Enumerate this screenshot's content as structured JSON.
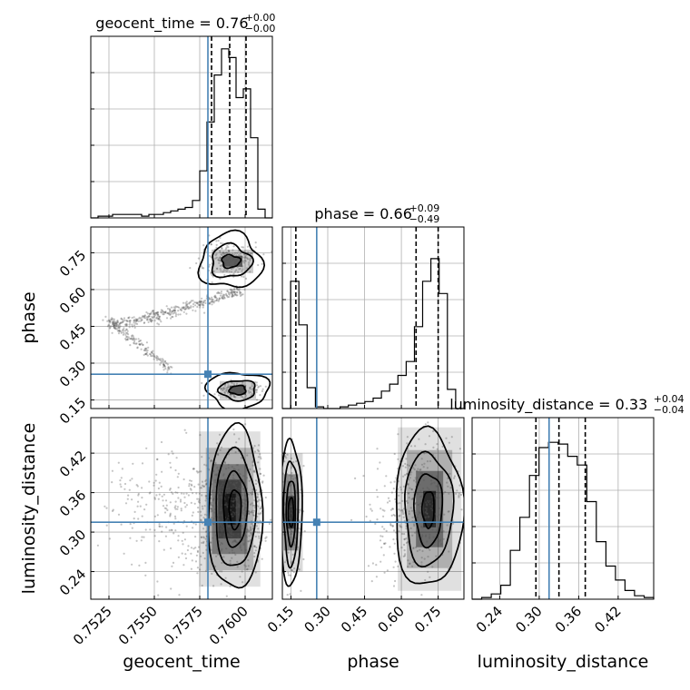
{
  "chart_data": {
    "type": "corner",
    "parameters": [
      "geocent_time",
      "phase",
      "luminosity_distance"
    ],
    "truth_color": "#4682b4",
    "truths": {
      "geocent_time": 0.75795,
      "phase": 0.255,
      "luminosity_distance": 0.315
    },
    "ranges": {
      "geocent_time": [
        0.7515,
        0.7615
      ],
      "phase": [
        0.115,
        0.855
      ],
      "luminosity_distance": [
        0.198,
        0.474
      ]
    },
    "ticks": {
      "geocent_time": {
        "values": [
          0.7525,
          0.755,
          0.7575,
          0.76
        ],
        "labels": [
          "0.7525",
          "0.7550",
          "0.7575",
          "0.7600"
        ]
      },
      "phase": {
        "values": [
          0.15,
          0.3,
          0.45,
          0.6,
          0.75
        ],
        "labels": [
          "0.15",
          "0.30",
          "0.45",
          "0.60",
          "0.75"
        ]
      },
      "luminosity_distance": {
        "values": [
          0.24,
          0.3,
          0.36,
          0.42
        ],
        "labels": [
          "0.24",
          "0.30",
          "0.36",
          "0.42"
        ]
      }
    },
    "titles": {
      "geocent_time": {
        "text": "geocent_time = 0.76",
        "sup": "+0.00",
        "sub": "−0.00"
      },
      "phase": {
        "text": "phase = 0.66",
        "sup": "+0.09",
        "sub": "−0.49"
      },
      "luminosity_distance": {
        "text": "luminosity_distance = 0.33",
        "sup": "+0.04",
        "sub": "−0.04"
      }
    },
    "axis_labels": {
      "geocent_time": "geocent_time",
      "phase": "phase",
      "luminosity_distance": "luminosity_distance"
    },
    "quantiles": {
      "geocent_time": [
        0.75815,
        0.75915,
        0.76005
      ],
      "phase": [
        0.17,
        0.66,
        0.75
      ],
      "luminosity_distance": [
        0.295,
        0.33,
        0.37
      ]
    },
    "histograms": {
      "geocent_time": {
        "edges_range": [
          0.7515,
          0.7615
        ],
        "counts": [
          0.0,
          0.01,
          0.01,
          0.02,
          0.02,
          0.02,
          0.02,
          0.01,
          0.02,
          0.02,
          0.03,
          0.04,
          0.05,
          0.06,
          0.1,
          0.27,
          0.55,
          0.82,
          0.97,
          0.92,
          0.69,
          0.74,
          0.46,
          0.05,
          0.0
        ]
      },
      "phase": {
        "edges_range": [
          0.115,
          0.855
        ],
        "counts": [
          0.0,
          0.73,
          0.48,
          0.12,
          0.01,
          0.0,
          0.0,
          0.01,
          0.02,
          0.03,
          0.04,
          0.06,
          0.1,
          0.14,
          0.19,
          0.27,
          0.47,
          0.73,
          0.86,
          0.66,
          0.11,
          0.0
        ]
      },
      "luminosity_distance": {
        "edges_range": [
          0.198,
          0.474
        ],
        "counts": [
          0.0,
          0.01,
          0.03,
          0.08,
          0.28,
          0.47,
          0.71,
          0.87,
          0.9,
          0.89,
          0.82,
          0.77,
          0.56,
          0.33,
          0.19,
          0.11,
          0.05,
          0.02,
          0.01
        ]
      }
    },
    "grid": true
  }
}
